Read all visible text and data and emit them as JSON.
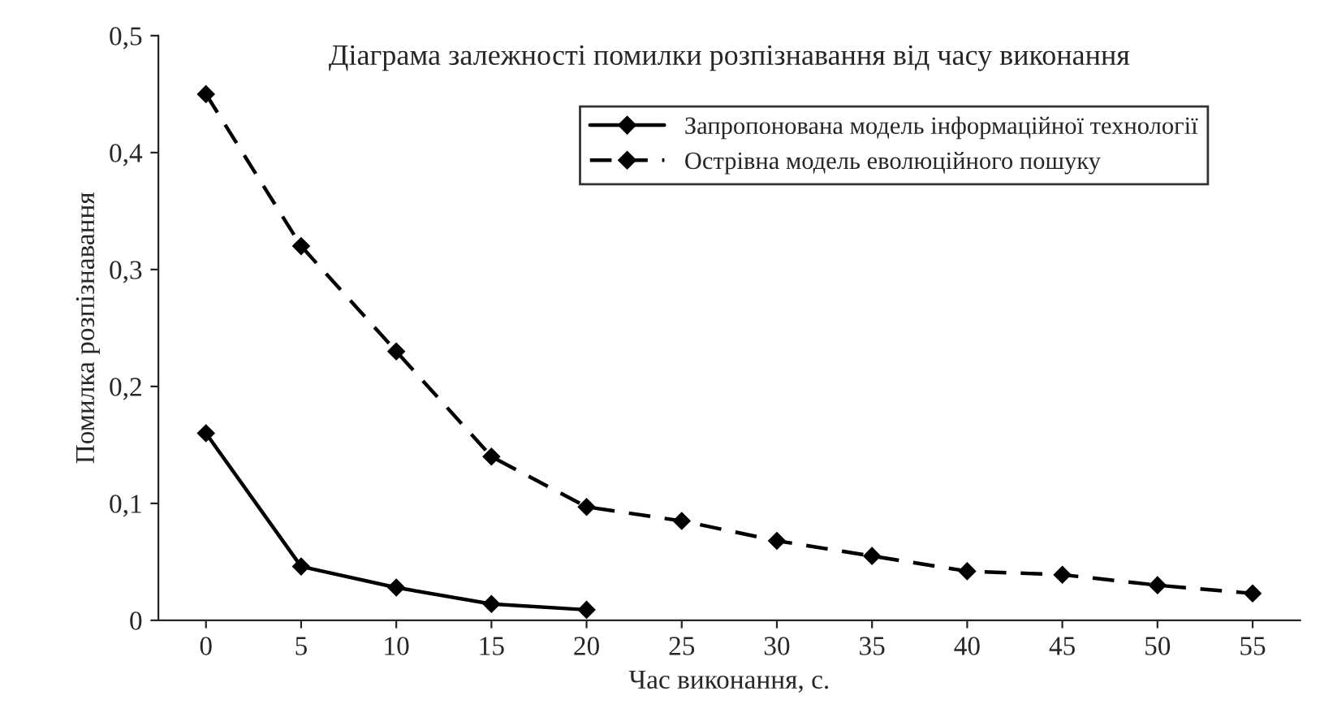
{
  "chart_data": {
    "type": "line",
    "title": "Діаграма залежності помилки розпізнавання від часу виконання",
    "xlabel": "Час виконання, с.",
    "ylabel": "Помилка розпізнавання",
    "categories": [
      "0",
      "5",
      "10",
      "15",
      "20",
      "25",
      "30",
      "35",
      "40",
      "45",
      "50",
      "55"
    ],
    "series": [
      {
        "name": "Запропонована модель інформаційної технології",
        "color": "#000000",
        "line_style": "solid",
        "values": [
          0.16,
          0.046,
          0.028,
          0.014,
          0.009,
          null,
          null,
          null,
          null,
          null,
          null,
          null
        ]
      },
      {
        "name": "Острівна модель еволюційного пошуку",
        "color": "#000000",
        "line_style": "dashed",
        "values": [
          0.45,
          0.32,
          0.23,
          0.14,
          0.097,
          0.085,
          0.068,
          0.055,
          0.042,
          0.039,
          0.03,
          0.023
        ]
      }
    ],
    "marker": "diamond",
    "grid": false,
    "legend": "top right",
    "ylim": [
      0,
      0.5
    ],
    "yticks": [
      0,
      {
        "value": 0.1,
        "label": "0,1"
      },
      {
        "value": 0.2,
        "label": "0,2"
      },
      {
        "value": 0.3,
        "label": "0,3"
      },
      {
        "value": 0.4,
        "label": "0,4"
      },
      {
        "value": 0.5,
        "label": "0,5"
      }
    ]
  }
}
